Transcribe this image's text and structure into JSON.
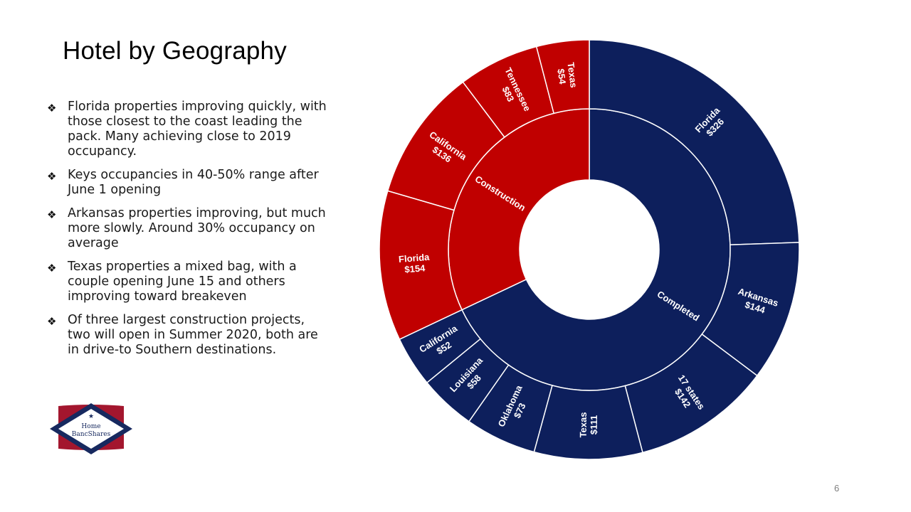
{
  "title": "Hotel by Geography",
  "bullets": [
    "Florida properties improving quickly, with those closest to the coast leading the pack. Many achieving close to 2019 occupancy.",
    "Keys occupancies in 40-50% range after June 1 opening",
    "Arkansas properties improving, but much more slowly. Around 30% occupancy on average",
    "Texas properties a mixed bag, with a couple opening June 15 and others improving toward breakeven",
    "Of three largest construction projects, two will open in Summer 2020, both are in drive-to Southern destinations."
  ],
  "logo": {
    "line1": "Home",
    "line2": "BancShares"
  },
  "page_number": "6",
  "colors": {
    "completed": "#0d1f5c",
    "construction": "#c00000",
    "divider": "#ffffff"
  },
  "chart_data": {
    "type": "sunburst",
    "title": "",
    "groups": [
      {
        "name": "Completed",
        "color": "#0d1f5c",
        "children": [
          {
            "name": "Florida",
            "label": "$326",
            "value": 326
          },
          {
            "name": "Arkansas",
            "label": "$144",
            "value": 144
          },
          {
            "name": "17 states",
            "label": "$142",
            "value": 142
          },
          {
            "name": "Texas",
            "label": "$111",
            "value": 111
          },
          {
            "name": "Oklahoma",
            "label": "$73",
            "value": 73
          },
          {
            "name": "Louisiana",
            "label": "$58",
            "value": 58
          },
          {
            "name": "California",
            "label": "$52",
            "value": 52
          }
        ]
      },
      {
        "name": "Construction",
        "color": "#c00000",
        "children": [
          {
            "name": "Florida",
            "label": "$154",
            "value": 154
          },
          {
            "name": "California",
            "label": "$136",
            "value": 136
          },
          {
            "name": "Tennessee",
            "label": "$83",
            "value": 83
          },
          {
            "name": "Texas",
            "label": "$54",
            "value": 54
          }
        ]
      }
    ]
  }
}
